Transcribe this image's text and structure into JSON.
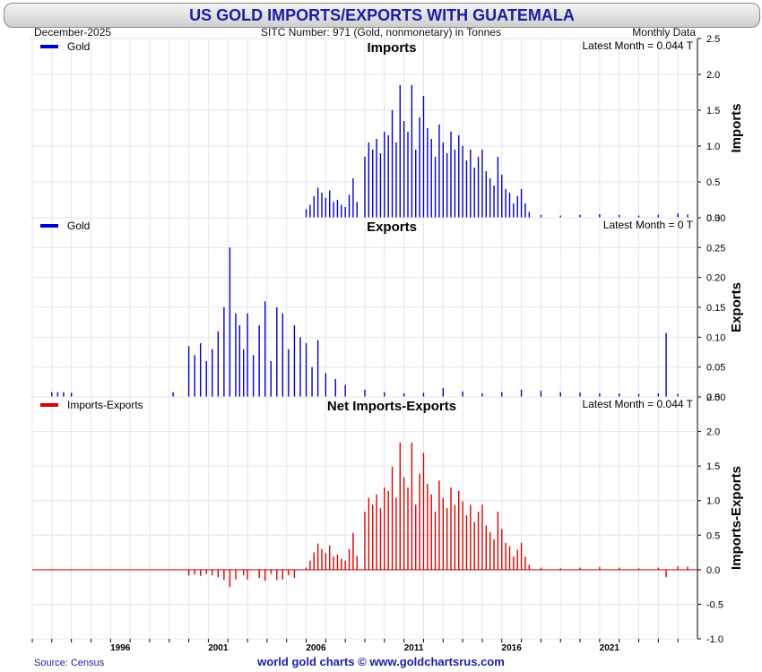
{
  "title": "US GOLD IMPORTS/EXPORTS WITH GUATEMALA",
  "header": {
    "date": "December-2025",
    "sitc": "SITC Number: 971 (Gold, nonmonetary) in Tonnes",
    "frequency": "Monthly Data"
  },
  "footer": {
    "source": "Source: Census",
    "credit": "world gold charts © www.goldchartsrus.com"
  },
  "colors": {
    "imports": "#0000cc",
    "exports": "#0000cc",
    "net": "#dd0000",
    "title": "#1c1ca8"
  },
  "chart_data": [
    {
      "type": "bar",
      "title": "Imports",
      "legend": "Gold",
      "latest_label": "Latest Month = 0.044 T",
      "ylabel": "Imports",
      "ylim": [
        0,
        2.5
      ],
      "yticks": [
        "2.5",
        "2.0",
        "1.5",
        "1.0",
        "0.5",
        "0.0"
      ],
      "xlim": [
        1992.0,
        2026.0
      ],
      "xticks": [
        "1996",
        "2001",
        "2006",
        "2011",
        "2016",
        "2021"
      ],
      "series": [
        {
          "name": "Gold",
          "x": [
            2006.0,
            2006.2,
            2006.4,
            2006.6,
            2006.8,
            2007.0,
            2007.2,
            2007.4,
            2007.6,
            2007.8,
            2008.0,
            2008.2,
            2008.4,
            2008.6,
            2009.0,
            2009.2,
            2009.4,
            2009.6,
            2009.8,
            2010.0,
            2010.2,
            2010.4,
            2010.6,
            2010.8,
            2011.0,
            2011.2,
            2011.4,
            2011.6,
            2011.8,
            2012.0,
            2012.2,
            2012.4,
            2012.6,
            2012.8,
            2013.0,
            2013.2,
            2013.4,
            2013.6,
            2013.8,
            2014.0,
            2014.2,
            2014.4,
            2014.6,
            2014.8,
            2015.0,
            2015.2,
            2015.4,
            2015.6,
            2015.8,
            2016.0,
            2016.2,
            2016.4,
            2016.6,
            2016.8,
            2017.0,
            2017.2,
            2017.4,
            2018.0,
            2019.0,
            2020.0,
            2021.0,
            2022.0,
            2023.0,
            2024.0,
            2025.0,
            2025.5
          ],
          "values": [
            0.12,
            0.18,
            0.3,
            0.42,
            0.35,
            0.28,
            0.38,
            0.22,
            0.25,
            0.18,
            0.15,
            0.32,
            0.55,
            0.22,
            0.85,
            1.05,
            0.95,
            1.1,
            0.9,
            1.2,
            1.15,
            1.5,
            1.05,
            1.85,
            1.35,
            1.2,
            1.85,
            0.95,
            1.4,
            1.7,
            1.25,
            1.1,
            0.85,
            1.3,
            1.05,
            0.9,
            1.2,
            0.95,
            1.15,
            1.0,
            0.8,
            0.95,
            0.7,
            0.85,
            0.95,
            0.65,
            0.55,
            0.45,
            0.85,
            0.6,
            0.4,
            0.35,
            0.2,
            0.3,
            0.4,
            0.2,
            0.08,
            0.04,
            0.03,
            0.04,
            0.05,
            0.04,
            0.03,
            0.04,
            0.06,
            0.044
          ]
        }
      ]
    },
    {
      "type": "bar",
      "title": "Exports",
      "legend": "Gold",
      "latest_label": "Latest Month = 0 T",
      "ylabel": "Exports",
      "ylim": [
        0,
        0.3
      ],
      "yticks": [
        "0.30",
        "0.25",
        "0.20",
        "0.15",
        "0.10",
        "0.05",
        "0.00"
      ],
      "xlim": [
        1992.0,
        2026.0
      ],
      "xticks": [
        "1996",
        "2001",
        "2006",
        "2011",
        "2016",
        "2021"
      ],
      "series": [
        {
          "name": "Gold",
          "x": [
            1993.0,
            1993.3,
            1993.6,
            1994.0,
            1999.2,
            2000.0,
            2000.3,
            2000.6,
            2000.9,
            2001.2,
            2001.5,
            2001.8,
            2002.1,
            2002.4,
            2002.6,
            2002.8,
            2003.0,
            2003.3,
            2003.6,
            2003.9,
            2004.2,
            2004.5,
            2004.8,
            2005.1,
            2005.4,
            2005.7,
            2006.0,
            2006.3,
            2006.6,
            2007.0,
            2007.5,
            2008.0,
            2009.0,
            2010.0,
            2011.0,
            2012.0,
            2013.0,
            2014.0,
            2015.0,
            2016.0,
            2017.0,
            2018.0,
            2019.0,
            2020.0,
            2021.0,
            2022.0,
            2023.0,
            2024.0,
            2024.4,
            2025.0,
            2025.6
          ],
          "values": [
            0.008,
            0.008,
            0.008,
            0.007,
            0.008,
            0.085,
            0.07,
            0.09,
            0.06,
            0.08,
            0.11,
            0.15,
            0.25,
            0.14,
            0.12,
            0.08,
            0.14,
            0.07,
            0.12,
            0.16,
            0.06,
            0.15,
            0.14,
            0.08,
            0.12,
            0.1,
            0.09,
            0.05,
            0.095,
            0.04,
            0.03,
            0.02,
            0.012,
            0.008,
            0.006,
            0.007,
            0.015,
            0.009,
            0.006,
            0.008,
            0.012,
            0.01,
            0.008,
            0.007,
            0.006,
            0.006,
            0.005,
            0.006,
            0.107,
            0.005,
            0.0
          ]
        }
      ]
    },
    {
      "type": "bar",
      "title": "Net Imports-Exports",
      "legend": "Imports-Exports",
      "latest_label": "Latest Month = 0.044 T",
      "ylabel": "Imports-Exports",
      "ylim": [
        -1.0,
        2.5
      ],
      "yticks": [
        "2.5",
        "2.0",
        "1.5",
        "1.0",
        "0.5",
        "0.0",
        "-0.5",
        "-1.0"
      ],
      "xlim": [
        1992.0,
        2026.0
      ],
      "xticks": [
        "1996",
        "2001",
        "2006",
        "2011",
        "2016",
        "2021"
      ],
      "series": [
        {
          "name": "Imports-Exports",
          "x": [
            1993.0,
            1994.0,
            1999.2,
            2000.0,
            2000.3,
            2000.6,
            2000.9,
            2001.2,
            2001.5,
            2001.8,
            2002.1,
            2002.4,
            2002.8,
            2003.0,
            2003.6,
            2003.9,
            2004.2,
            2004.5,
            2004.8,
            2005.1,
            2005.4,
            2006.0,
            2006.2,
            2006.4,
            2006.6,
            2006.8,
            2007.0,
            2007.2,
            2007.4,
            2007.6,
            2007.8,
            2008.0,
            2008.2,
            2008.4,
            2008.6,
            2009.0,
            2009.2,
            2009.4,
            2009.6,
            2009.8,
            2010.0,
            2010.2,
            2010.4,
            2010.6,
            2010.8,
            2011.0,
            2011.2,
            2011.4,
            2011.6,
            2011.8,
            2012.0,
            2012.2,
            2012.4,
            2012.6,
            2012.8,
            2013.0,
            2013.2,
            2013.4,
            2013.6,
            2013.8,
            2014.0,
            2014.2,
            2014.4,
            2014.6,
            2014.8,
            2015.0,
            2015.2,
            2015.4,
            2015.6,
            2015.8,
            2016.0,
            2016.2,
            2016.4,
            2016.6,
            2016.8,
            2017.0,
            2017.2,
            2017.4,
            2018.0,
            2019.0,
            2020.0,
            2021.0,
            2022.0,
            2023.0,
            2024.0,
            2024.4,
            2025.0,
            2025.5
          ],
          "values": [
            -0.008,
            -0.007,
            -0.008,
            -0.085,
            -0.07,
            -0.09,
            -0.06,
            -0.08,
            -0.11,
            -0.15,
            -0.25,
            -0.14,
            -0.08,
            -0.14,
            -0.12,
            -0.16,
            -0.06,
            -0.15,
            -0.14,
            -0.08,
            -0.12,
            0.03,
            0.13,
            0.25,
            0.38,
            0.3,
            0.24,
            0.35,
            0.19,
            0.22,
            0.16,
            0.13,
            0.3,
            0.53,
            0.2,
            0.84,
            1.04,
            0.94,
            1.09,
            0.89,
            1.19,
            1.14,
            1.49,
            1.04,
            1.84,
            1.34,
            1.19,
            1.84,
            0.94,
            1.39,
            1.69,
            1.24,
            1.09,
            0.84,
            1.29,
            1.04,
            0.89,
            1.19,
            0.94,
            1.14,
            0.99,
            0.79,
            0.94,
            0.69,
            0.84,
            0.94,
            0.64,
            0.54,
            0.44,
            0.84,
            0.59,
            0.39,
            0.34,
            0.19,
            0.29,
            0.39,
            0.19,
            0.07,
            0.03,
            0.02,
            0.03,
            0.04,
            0.03,
            0.02,
            0.03,
            -0.107,
            0.05,
            0.044
          ]
        }
      ]
    }
  ]
}
